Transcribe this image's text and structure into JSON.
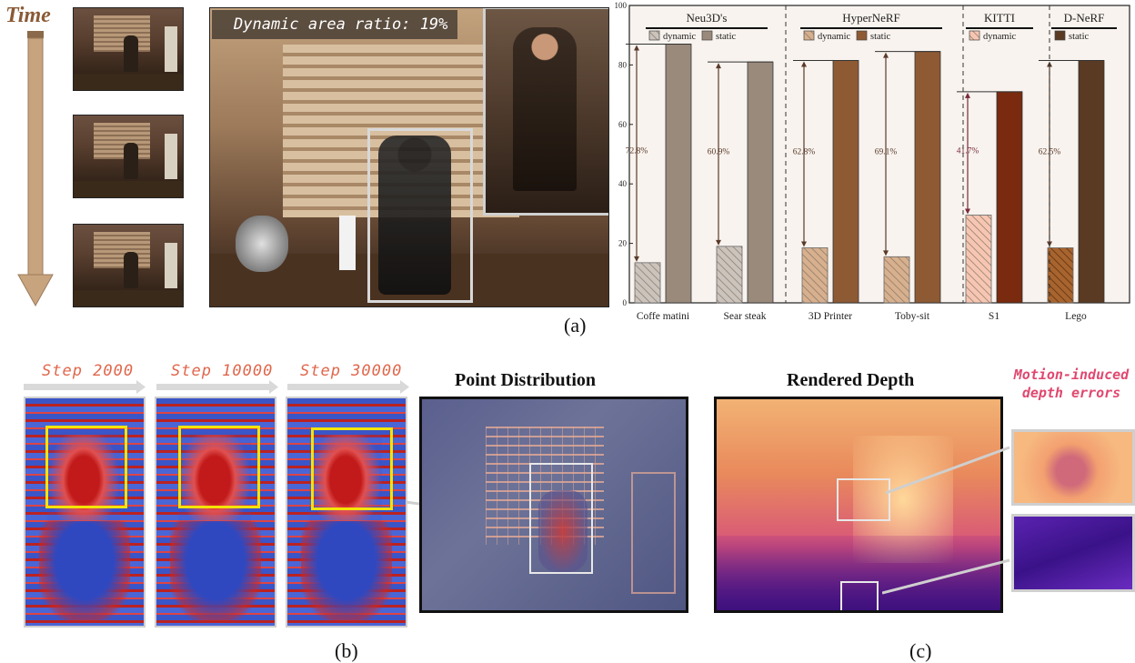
{
  "figure": {
    "time_label": "Time",
    "panel_a_caption": "(a)",
    "panel_b_caption": "(b)",
    "panel_c_caption": "(c)",
    "dynamic_ratio_label": "Dynamic area ratio: 19%",
    "steps": [
      "Step 2000",
      "Step 10000",
      "Step 30000"
    ],
    "point_distribution_title": "Point Distribution",
    "rendered_depth_title": "Rendered Depth",
    "motion_label_line1": "Motion-induced",
    "motion_label_line2": "depth errors"
  },
  "colors": {
    "time_arrow": "#c8a47e",
    "step_text": "#e0664b",
    "motion_text": "#e0486f",
    "highlight_box": "#f4e400"
  },
  "chart_data": {
    "type": "bar",
    "ylim": [
      0,
      100
    ],
    "yticks": [
      0,
      20,
      40,
      60,
      80,
      100
    ],
    "categories": [
      "Coffe matini",
      "Sear steak",
      "3D Printer",
      "Toby-sit",
      "S1",
      "Lego"
    ],
    "groups": [
      {
        "name": "Neu3D's",
        "members": [
          0,
          1
        ],
        "legend": [
          "dynamic",
          "static"
        ]
      },
      {
        "name": "HyperNeRF",
        "members": [
          2,
          3
        ],
        "legend": [
          "dynamic",
          "static"
        ]
      },
      {
        "name": "KITTI",
        "members": [
          4
        ],
        "legend": [
          "dynamic"
        ]
      },
      {
        "name": "D-NeRF",
        "members": [
          5
        ],
        "legend": [
          "static"
        ]
      }
    ],
    "series": [
      {
        "name": "dynamic",
        "values": [
          13.5,
          19,
          18.5,
          15.5,
          29.5,
          18.5
        ]
      },
      {
        "name": "static",
        "values": [
          87,
          81,
          81.5,
          84.5,
          71,
          81.5
        ]
      }
    ],
    "gap_labels": [
      "72.8%",
      "60.9%",
      "62.8%",
      "69.1%",
      "41.7%",
      "62.5%"
    ],
    "dynamic_colors": [
      "#cbc4bd",
      "#cbc4bd",
      "#d8b08e",
      "#d8b08e",
      "#f7c6b2",
      "#a8642e"
    ],
    "static_colors": [
      "#9a8a7c",
      "#9a8a7c",
      "#8e5a34",
      "#8e5a34",
      "#7a2a0e",
      "#5a3a22"
    ],
    "grid": false
  }
}
